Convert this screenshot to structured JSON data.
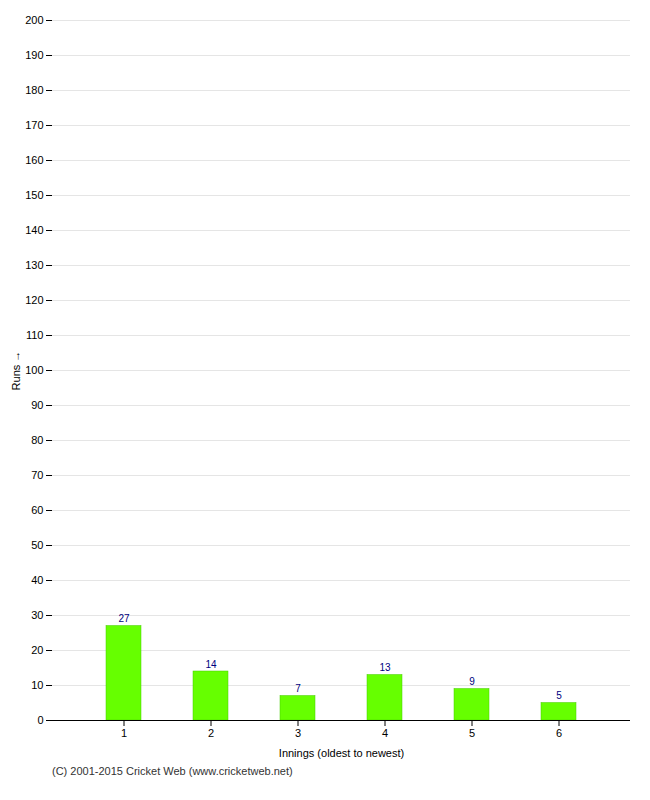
{
  "chart_data": {
    "type": "bar",
    "categories": [
      "1",
      "2",
      "3",
      "4",
      "5",
      "6"
    ],
    "values": [
      27,
      14,
      7,
      13,
      9,
      5
    ],
    "color": "#66ff00",
    "xlabel": "Innings (oldest to newest)",
    "ylabel": "Runs",
    "ylim": [
      0,
      200
    ],
    "yticks": [
      0,
      10,
      20,
      30,
      40,
      50,
      60,
      70,
      80,
      90,
      100,
      110,
      120,
      130,
      140,
      150,
      160,
      170,
      180,
      190,
      200
    ],
    "grid": true,
    "data_labels": true,
    "annotations": [
      "(C) 2001-2015 Cricket Web (www.cricketweb.net)"
    ]
  }
}
